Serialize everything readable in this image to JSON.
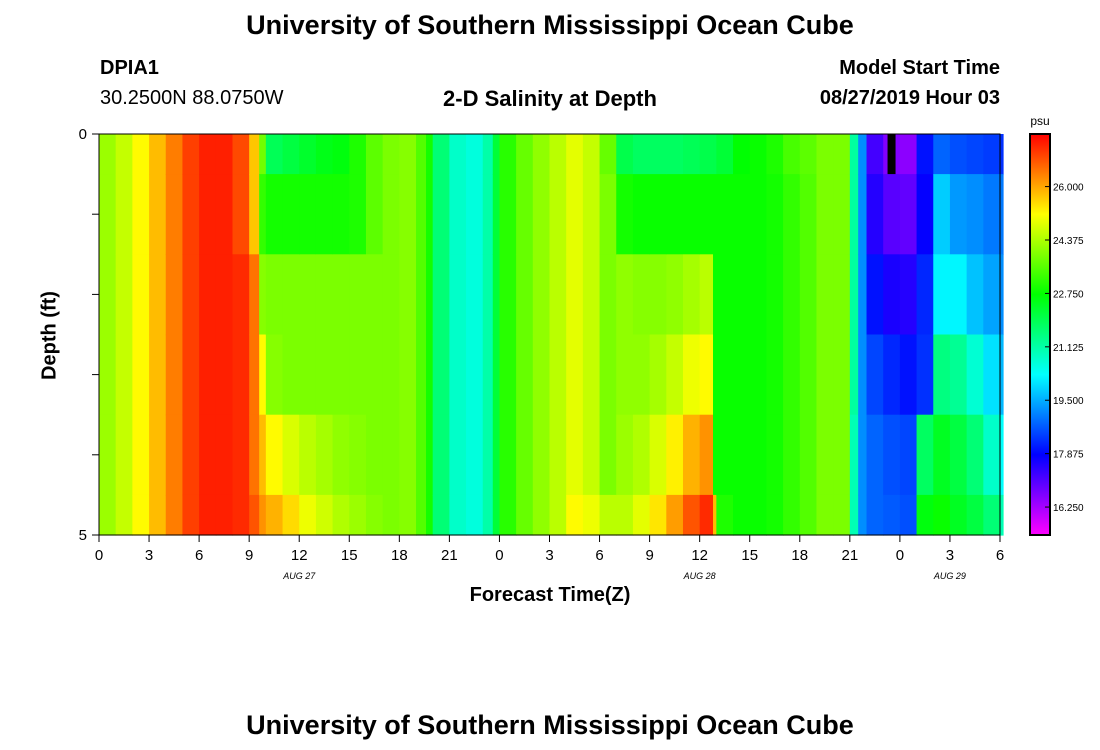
{
  "page": {
    "title_top": "University of Southern Mississippi Ocean Cube",
    "title_bottom": "University of Southern Mississippi Ocean Cube",
    "station_id": "DPIA1",
    "station_coords": "30.2500N 88.0750W",
    "plot_title": "2-D Salinity at Depth",
    "model_start_label": "Model Start Time",
    "model_start_value": "08/27/2019 Hour 03"
  },
  "chart_data": {
    "type": "heatmap",
    "title": "2-D Salinity at Depth",
    "xlabel": "Forecast Time(Z)",
    "ylabel": "Depth (ft)",
    "x_ticks": [
      "0",
      "3",
      "6",
      "9",
      "12",
      "15",
      "18",
      "21",
      "0",
      "3",
      "6",
      "9",
      "12",
      "15",
      "18",
      "21",
      "0",
      "3",
      "6"
    ],
    "x_range_hours": [
      0,
      54
    ],
    "date_labels": [
      {
        "text": "AUG 27",
        "hour": 12
      },
      {
        "text": "AUG 28",
        "hour": 36
      },
      {
        "text": "AUG 29",
        "hour": 51
      }
    ],
    "y_ticks": [
      "0",
      "5"
    ],
    "y_range_ft": [
      0,
      5
    ],
    "depth_levels_ft": [
      0.25,
      1.0,
      2.0,
      3.0,
      4.0,
      4.75
    ],
    "depth_edges_ft": [
      0,
      0.5,
      1.5,
      2.5,
      3.5,
      4.5,
      5
    ],
    "colorbar": {
      "unit": "psu",
      "min": 15.4,
      "max": 27.6,
      "labels": [
        "26.000",
        "24.375",
        "22.750",
        "21.125",
        "19.500",
        "17.875",
        "16.250"
      ],
      "label_values": [
        26.0,
        24.375,
        22.75,
        21.125,
        19.5,
        17.875,
        16.25
      ]
    },
    "missing_marker": {
      "hour": 47.5,
      "depth_ft": [
        0,
        0.5
      ]
    },
    "column_profiles": [
      {
        "hour": 0,
        "values": [
          24.2,
          24.2,
          24.2,
          24.2,
          24.2,
          24.2
        ]
      },
      {
        "hour": 1,
        "values": [
          24.6,
          24.6,
          24.6,
          24.6,
          24.6,
          24.6
        ]
      },
      {
        "hour": 2,
        "values": [
          25.2,
          25.2,
          25.2,
          25.2,
          25.2,
          25.2
        ]
      },
      {
        "hour": 3,
        "values": [
          25.8,
          25.8,
          25.8,
          25.8,
          25.8,
          25.8
        ]
      },
      {
        "hour": 4,
        "values": [
          26.4,
          26.4,
          26.4,
          26.4,
          26.4,
          26.4
        ]
      },
      {
        "hour": 5,
        "values": [
          27.0,
          27.0,
          27.0,
          27.0,
          27.0,
          27.0
        ]
      },
      {
        "hour": 6,
        "values": [
          27.3,
          27.3,
          27.3,
          27.3,
          27.3,
          27.3
        ]
      },
      {
        "hour": 7,
        "values": [
          27.3,
          27.3,
          27.3,
          27.3,
          27.3,
          27.3
        ]
      },
      {
        "hour": 8,
        "values": [
          26.9,
          26.9,
          27.2,
          27.2,
          27.2,
          27.2
        ]
      },
      {
        "hour": 9,
        "values": [
          25.7,
          25.7,
          26.5,
          26.5,
          26.5,
          26.8
        ]
      },
      {
        "hour": 9.6,
        "values": [
          23.8,
          23.2,
          24.0,
          25.2,
          25.8,
          26.2
        ]
      },
      {
        "hour": 10,
        "values": [
          21.9,
          22.9,
          23.9,
          24.0,
          25.2,
          25.9
        ]
      },
      {
        "hour": 11,
        "values": [
          22.1,
          22.9,
          23.9,
          23.9,
          24.8,
          25.5
        ]
      },
      {
        "hour": 12,
        "values": [
          22.3,
          22.9,
          23.9,
          23.9,
          24.5,
          25.0
        ]
      },
      {
        "hour": 13,
        "values": [
          22.5,
          22.9,
          23.9,
          23.9,
          24.3,
          24.7
        ]
      },
      {
        "hour": 14,
        "values": [
          22.6,
          22.9,
          23.9,
          23.9,
          24.1,
          24.4
        ]
      },
      {
        "hour": 15,
        "values": [
          23.0,
          23.0,
          23.9,
          23.9,
          24.0,
          24.2
        ]
      },
      {
        "hour": 16,
        "values": [
          23.6,
          23.6,
          23.9,
          23.9,
          23.9,
          24.0
        ]
      },
      {
        "hour": 17,
        "values": [
          23.9,
          23.9,
          23.9,
          23.9,
          23.9,
          23.9
        ]
      },
      {
        "hour": 18,
        "values": [
          24.0,
          24.0,
          24.0,
          24.0,
          24.0,
          24.0
        ]
      },
      {
        "hour": 19,
        "values": [
          23.5,
          23.5,
          23.5,
          23.5,
          23.5,
          23.5
        ]
      },
      {
        "hour": 19.6,
        "values": [
          22.9,
          22.9,
          22.9,
          22.9,
          22.9,
          22.9
        ]
      },
      {
        "hour": 20,
        "values": [
          21.6,
          21.6,
          21.6,
          21.6,
          21.6,
          21.6
        ]
      },
      {
        "hour": 21,
        "values": [
          20.8,
          20.8,
          20.8,
          20.8,
          20.8,
          20.8
        ]
      },
      {
        "hour": 22,
        "values": [
          20.6,
          20.6,
          20.6,
          20.6,
          20.6,
          20.6
        ]
      },
      {
        "hour": 23,
        "values": [
          21.1,
          21.1,
          21.1,
          21.1,
          21.1,
          21.1
        ]
      },
      {
        "hour": 23.6,
        "values": [
          22.2,
          22.2,
          22.2,
          22.2,
          22.2,
          22.2
        ]
      },
      {
        "hour": 24,
        "values": [
          23.1,
          23.1,
          23.1,
          23.1,
          23.1,
          23.1
        ]
      },
      {
        "hour": 25,
        "values": [
          23.7,
          23.7,
          23.7,
          23.7,
          23.7,
          23.7
        ]
      },
      {
        "hour": 26,
        "values": [
          24.1,
          24.1,
          24.1,
          24.1,
          24.1,
          24.1
        ]
      },
      {
        "hour": 27,
        "values": [
          24.5,
          24.5,
          24.5,
          24.5,
          24.5,
          24.5
        ]
      },
      {
        "hour": 28,
        "values": [
          24.9,
          24.9,
          24.9,
          24.9,
          24.9,
          25.2
        ]
      },
      {
        "hour": 29,
        "values": [
          24.6,
          24.6,
          24.6,
          24.6,
          24.6,
          25.0
        ]
      },
      {
        "hour": 30,
        "values": [
          23.7,
          23.9,
          23.9,
          23.9,
          23.9,
          24.5
        ]
      },
      {
        "hour": 31,
        "values": [
          22.0,
          22.9,
          24.1,
          24.1,
          24.2,
          24.5
        ]
      },
      {
        "hour": 32,
        "values": [
          21.8,
          22.8,
          24.0,
          24.1,
          24.4,
          24.9
        ]
      },
      {
        "hour": 33,
        "values": [
          21.8,
          22.8,
          24.0,
          24.3,
          24.8,
          25.4
        ]
      },
      {
        "hour": 34,
        "values": [
          21.8,
          22.8,
          24.1,
          24.6,
          25.3,
          26.1
        ]
      },
      {
        "hour": 35,
        "values": [
          21.9,
          22.8,
          24.3,
          25.0,
          25.9,
          26.8
        ]
      },
      {
        "hour": 36,
        "values": [
          22.0,
          22.8,
          24.5,
          25.2,
          26.2,
          27.2
        ]
      },
      {
        "hour": 36.8,
        "values": [
          22.0,
          22.8,
          22.8,
          22.8,
          22.8,
          25.8
        ]
      },
      {
        "hour": 37,
        "values": [
          22.2,
          22.8,
          22.8,
          22.8,
          22.8,
          23.0
        ]
      },
      {
        "hour": 38,
        "values": [
          22.7,
          22.8,
          22.8,
          22.8,
          22.8,
          22.8
        ]
      },
      {
        "hour": 39,
        "values": [
          22.8,
          22.8,
          22.8,
          22.8,
          22.8,
          22.8
        ]
      },
      {
        "hour": 40,
        "values": [
          23.0,
          22.9,
          22.9,
          22.9,
          22.9,
          22.9
        ]
      },
      {
        "hour": 41,
        "values": [
          23.4,
          23.2,
          23.2,
          23.2,
          23.2,
          23.2
        ]
      },
      {
        "hour": 42,
        "values": [
          23.6,
          23.5,
          23.5,
          23.5,
          23.5,
          23.5
        ]
      },
      {
        "hour": 43,
        "values": [
          23.9,
          23.9,
          23.9,
          23.9,
          23.9,
          23.9
        ]
      },
      {
        "hour": 44,
        "values": [
          23.9,
          23.9,
          23.9,
          23.9,
          23.9,
          23.9
        ]
      },
      {
        "hour": 45,
        "values": [
          21.2,
          21.2,
          21.2,
          21.2,
          21.0,
          21.0
        ]
      },
      {
        "hour": 45.5,
        "values": [
          19.2,
          19.2,
          19.2,
          19.2,
          19.2,
          19.2
        ]
      },
      {
        "hour": 46,
        "values": [
          17.2,
          17.5,
          18.0,
          18.5,
          18.8,
          18.8
        ]
      },
      {
        "hour": 47,
        "values": [
          16.6,
          17.0,
          17.6,
          18.2,
          18.6,
          18.7
        ]
      },
      {
        "hour": 48,
        "values": [
          16.5,
          16.9,
          17.5,
          18.0,
          18.5,
          18.6
        ]
      },
      {
        "hour": 49,
        "values": [
          18.0,
          17.8,
          18.2,
          18.3,
          21.8,
          22.6
        ]
      },
      {
        "hour": 50,
        "values": [
          18.8,
          19.8,
          20.2,
          21.5,
          22.4,
          22.8
        ]
      },
      {
        "hour": 51,
        "values": [
          18.6,
          19.3,
          20.2,
          21.3,
          22.1,
          22.4
        ]
      },
      {
        "hour": 52,
        "values": [
          18.5,
          19.2,
          19.7,
          20.7,
          21.6,
          22.1
        ]
      },
      {
        "hour": 53,
        "values": [
          18.4,
          19.0,
          19.4,
          20.0,
          20.8,
          21.6
        ]
      },
      {
        "hour": 54,
        "values": [
          18.3,
          19.0,
          19.2,
          19.6,
          20.3,
          21.0
        ]
      }
    ]
  }
}
